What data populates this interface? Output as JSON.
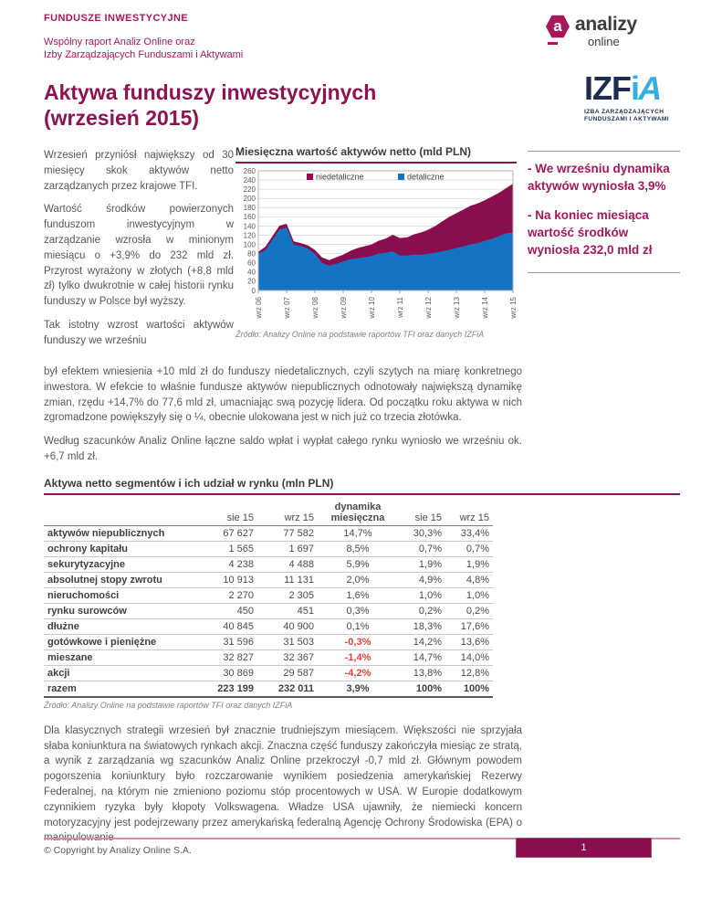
{
  "header": {
    "kicker": "FUNDUSZE INWESTYCYJNE",
    "subtitle_line1": "Wspólny raport Analiz Online oraz",
    "subtitle_line2": "Izby Zarządzających Funduszami i Aktywami",
    "title_line1": "Aktywa funduszy inwestycyjnych",
    "title_line2": "(wrzesień 2015)"
  },
  "logos": {
    "analizy": {
      "icon_letter": "a",
      "name": "analizy",
      "sub": "online"
    },
    "izfia": {
      "part_navy": "IZF",
      "part_blue_i": "i",
      "part_blue_a": "A",
      "caption_line1": "IZBA ZARZĄDZAJĄCYCH",
      "caption_line2": "FUNDUSZAMI I AKTYWAMI"
    }
  },
  "intro": {
    "p1": "Wrzesień przyniósł największy od 30 miesięcy skok aktywów netto zarządzanych przez krajowe TFI.",
    "p2": "Wartość środków powierzonych funduszom inwestycyjnym w zarządzanie wzrosła w minionym miesiącu o +3,9% do 232 mld zł. Przyrost wyrażony w złotych (+8,8 mld zł) tylko dwukrotnie w całej historii rynku funduszy w Polsce był wyższy.",
    "p3_start": "Tak istotny wzrost wartości aktywów funduszy we wrześniu",
    "p3_continued": "był efektem wniesienia +10 mld zł do funduszy niedetalicznych, czyli szytych na miarę konkretnego inwestora. W efekcie to właśnie fundusze aktywów niepublicznych odnotowały największą dynamikę zmian, rzędu +14,7% do 77,6 mld zł, umacniając swą pozycję lidera. Od początku roku aktywa w nich zgromadzone powiększyły się o ¼, obecnie ulokowana jest w nich już co trzecia złotówka.",
    "p4": "Według szacunków Analiz Online łączne saldo wpłat i wypłat całego rynku wyniosło we wrześniu ok. +6,7 mld zł."
  },
  "callout": {
    "items": [
      "- We wrześniu dynamika aktywów wyniosła 3,9%",
      "- Na koniec miesiąca wartość środków wyniosła 232,0 mld zł"
    ]
  },
  "chart_data": {
    "type": "area",
    "stacked": true,
    "title": "Miesięczna wartość aktywów netto (mld PLN)",
    "ylabel": "",
    "xlabel": "",
    "ylim": [
      0,
      260
    ],
    "ytick_step": 20,
    "grid": true,
    "legend_position": "top-inside",
    "x_tick_labels": [
      "wrz 06",
      "wrz 07",
      "wrz 08",
      "wrz 09",
      "wrz 10",
      "wrz 11",
      "wrz 12",
      "wrz 13",
      "wrz 14",
      "wrz 15"
    ],
    "points_per_tick": 4,
    "series": [
      {
        "name": "niedetaliczne",
        "color": "#8a0d4d",
        "values": [
          5,
          7,
          8,
          8,
          8,
          7,
          6,
          7,
          8,
          12,
          12,
          14,
          15,
          18,
          22,
          24,
          25,
          28,
          31,
          36,
          38,
          39,
          44,
          48,
          52,
          58,
          65,
          72,
          76,
          80,
          84,
          86,
          88,
          92,
          94,
          98,
          106
        ]
      },
      {
        "name": "detaliczne",
        "color": "#1374c4",
        "values": [
          79,
          88,
          110,
          133,
          137,
          100,
          97,
          91,
          80,
          60,
          54,
          58,
          63,
          68,
          70,
          72,
          75,
          80,
          82,
          85,
          76,
          76,
          78,
          78,
          80,
          82,
          85,
          88,
          92,
          96,
          100,
          103,
          108,
          112,
          118,
          124,
          126
        ]
      }
    ],
    "totals_at_ticks": [
      84,
      145,
      88,
      78,
      100,
      114,
      132,
      168,
      196,
      232
    ],
    "source": "Źródło: Analizy Online na podstawie raportów TFI oraz danych IZFiA"
  },
  "table": {
    "title": "Aktywa netto segmentów i ich udział w rynku (mln PLN)",
    "col_headers": [
      "",
      "sie 15",
      "wrz 15",
      "dynamika miesięczna",
      "sie 15",
      "wrz 15"
    ],
    "rows": [
      [
        "aktywów niepublicznych",
        "67 627",
        "77 582",
        "14,7%",
        "30,3%",
        "33,4%"
      ],
      [
        "ochrony kapitału",
        "1 565",
        "1 697",
        "8,5%",
        "0,7%",
        "0,7%"
      ],
      [
        "sekurytyzacyjne",
        "4 238",
        "4 488",
        "5,9%",
        "1,9%",
        "1,9%"
      ],
      [
        "absolutnej stopy zwrotu",
        "10 913",
        "11 131",
        "2,0%",
        "4,9%",
        "4,8%"
      ],
      [
        "nieruchomości",
        "2 270",
        "2 305",
        "1,6%",
        "1,0%",
        "1,0%"
      ],
      [
        "rynku surowców",
        "450",
        "451",
        "0,3%",
        "0,2%",
        "0,2%"
      ],
      [
        "dłużne",
        "40 845",
        "40 900",
        "0,1%",
        "18,3%",
        "17,6%"
      ],
      [
        "gotówkowe i pieniężne",
        "31 596",
        "31 503",
        "-0,3%",
        "14,2%",
        "13,6%"
      ],
      [
        "mieszane",
        "32 827",
        "32 367",
        "-1,4%",
        "14,7%",
        "14,0%"
      ],
      [
        "akcji",
        "30 869",
        "29 587",
        "-4,2%",
        "13,8%",
        "12,8%"
      ]
    ],
    "total_row": [
      "razem",
      "223 199",
      "232 011",
      "3,9%",
      "100%",
      "100%"
    ],
    "source": "Źródło: Analizy Online na podstawie raportów TFI oraz danych IZFiA"
  },
  "closing": {
    "p1": "Dla klasycznych strategii wrzesień był znacznie trudniejszym miesiącem. Większości nie sprzyjała słaba koniunktura na światowych rynkach akcji. Znaczna część funduszy zakończyła miesiąc ze stratą, a wynik z zarządzania wg szacunków Analiz Online przekroczył -0,7 mld zł. Głównym powodem pogorszenia koniunktury było rozczarowanie wynikiem posiedzenia amerykańskiej Rezerwy Federalnej, na którym nie zmieniono poziomu stóp procentowych w USA. W Europie dodatkowym czynnikiem ryzyka były kłopoty Volkswagena. Władze USA ujawniły, że niemiecki koncern motoryzacyjny jest podejrzewany przez amerykańską federalną Agencję Ochrony Środowiska (EPA) o manipulowanie"
  },
  "footer": {
    "copyright": "© Copyright by Analizy Online S.A.",
    "page_number": "1"
  },
  "colors": {
    "accent": "#8e1253",
    "magenta": "#a3195b",
    "chart_niedetaliczne": "#8a0d4d",
    "chart_detaliczne": "#1374c4",
    "negative": "#e8403a",
    "izfia_navy": "#1e2c4f",
    "izfia_blue": "#35aee3",
    "footer_box": "#8a0d4d"
  }
}
